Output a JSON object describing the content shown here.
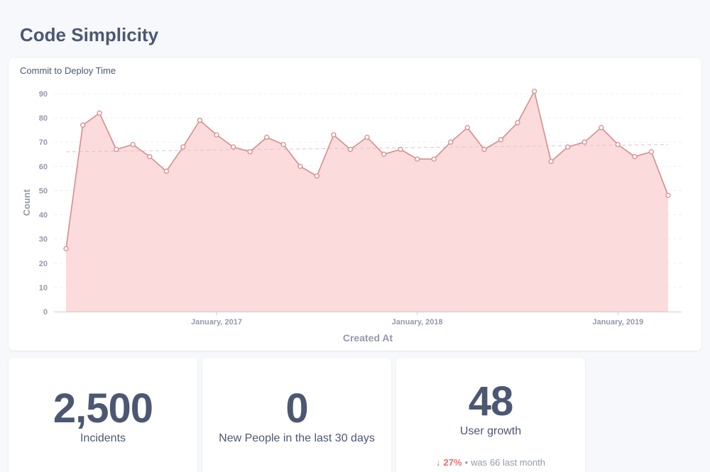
{
  "dashboard": {
    "title": "Code Simplicity"
  },
  "card": {
    "title": "Commit to Deploy Time"
  },
  "chart_data": {
    "type": "area",
    "title": "Commit to Deploy Time",
    "xlabel": "Created At",
    "ylabel": "Count",
    "ylim": [
      0,
      90
    ],
    "yticks": [
      "0",
      "10",
      "20",
      "30",
      "40",
      "50",
      "60",
      "70",
      "80",
      "90"
    ],
    "xticks": [
      {
        "label": "January, 2017",
        "index": 9
      },
      {
        "label": "January, 2018",
        "index": 21
      },
      {
        "label": "January, 2019",
        "index": 33
      }
    ],
    "values": [
      26,
      77,
      82,
      67,
      69,
      64,
      58,
      68,
      79,
      73,
      68,
      66,
      72,
      69,
      60,
      56,
      73,
      67,
      72,
      65,
      67,
      63,
      63,
      70,
      76,
      67,
      71,
      78,
      91,
      62,
      68,
      70,
      76,
      69,
      64,
      66,
      48
    ],
    "trendline": [
      66,
      69
    ],
    "grid": true,
    "legend": "none",
    "colors": {
      "line": "#d98c8c",
      "fill": "#fbdbdb",
      "point_fill": "#ffffff"
    }
  },
  "stats": [
    {
      "value": "2,500",
      "label": "Incidents"
    },
    {
      "value": "0",
      "label": "New People in the last 30 days"
    },
    {
      "value": "48",
      "label": "User growth",
      "trend": {
        "arrow": "↓",
        "percent": "27%",
        "separator": "•",
        "was_text": "was 66",
        "period": "last month"
      }
    }
  ]
}
